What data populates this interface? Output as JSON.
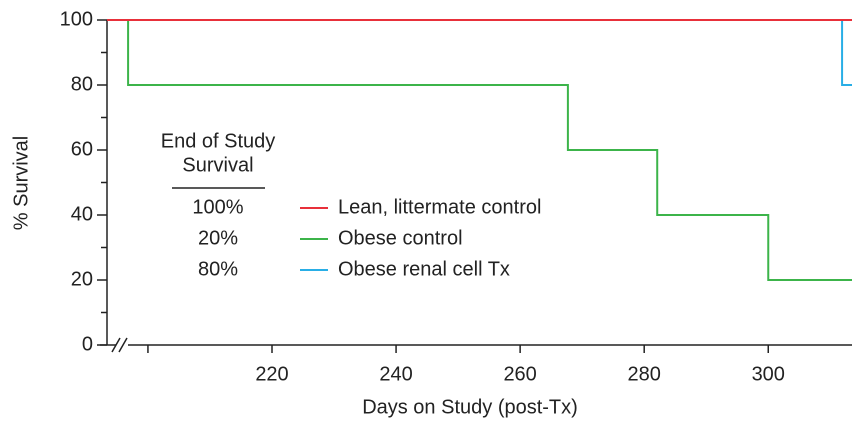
{
  "chart_data": {
    "type": "step",
    "x_label": "Days on Study (post-Tx)",
    "y_label": "% Survival",
    "xlim": [
      193.4,
      313.5
    ],
    "xticks": [
      220,
      240,
      260,
      280,
      300
    ],
    "xminorticks": [
      200
    ],
    "ylim": [
      0,
      100
    ],
    "yticks": [
      0,
      20,
      40,
      60,
      80,
      100
    ],
    "yminorticks": [
      10,
      30,
      50,
      70,
      90
    ],
    "legend_heading": [
      "End of Study",
      "Survival"
    ],
    "series": [
      {
        "name": "Lean, littermate control",
        "color": "#e8303a",
        "end_survival": "100%",
        "x": [
          193.4,
          313.5
        ],
        "values": [
          100,
          100
        ]
      },
      {
        "name": "Obese control",
        "color": "#3cb44a",
        "end_survival": "20%",
        "x": [
          193.4,
          196.8,
          267.7,
          282.1,
          300,
          313.5
        ],
        "values": [
          100,
          80,
          60,
          40,
          20,
          20
        ]
      },
      {
        "name": "Obese renal cell Tx",
        "color": "#29aee6",
        "end_survival": "80%",
        "x": [
          193.4,
          311.9,
          313.5
        ],
        "values": [
          100,
          80,
          80
        ]
      }
    ]
  }
}
